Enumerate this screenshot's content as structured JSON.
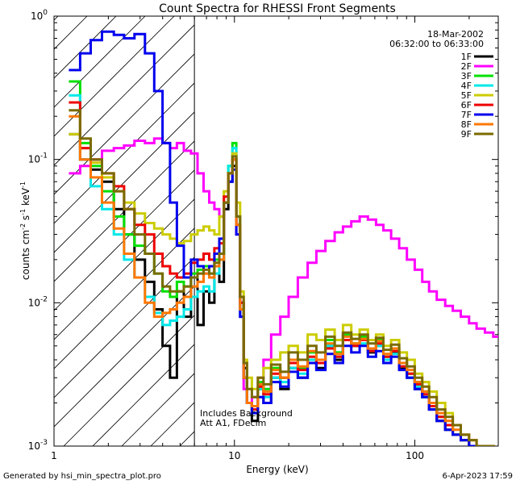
{
  "chart_data": {
    "type": "line",
    "title": "Count Spectra for RHESSI Front Segments",
    "xlabel": "Energy (keV)",
    "ylabel_base": "counts cm",
    "ylabel_exp1": "-2",
    "ylabel_mid1": " s",
    "ylabel_exp2": "-1",
    "ylabel_mid2": " keV",
    "ylabel_exp3": "-1",
    "xscale": "log",
    "yscale": "log",
    "xlim": [
      1,
      290
    ],
    "ylim": [
      0.001,
      1.0
    ],
    "x_tick_labels": [
      {
        "value": 1,
        "label": "1"
      },
      {
        "value": 10,
        "label": "10"
      },
      {
        "value": 100,
        "label": "100"
      }
    ],
    "y_tick_labels": [
      {
        "value": 1.0,
        "base": "10",
        "exp": "0"
      },
      {
        "value": 0.1,
        "base": "10",
        "exp": "-1"
      },
      {
        "value": 0.01,
        "base": "10",
        "exp": "-2"
      },
      {
        "value": 0.001,
        "base": "10",
        "exp": "-3"
      }
    ],
    "date": "18-Mar-2002",
    "time_range": "06:32:00 to 06:33:00",
    "annotation_line1": "Includes Background",
    "annotation_line2": "Att A1, FDecim",
    "shaded_region_xmax": 6.0,
    "legend_position": "top-right",
    "series": [
      {
        "name": "1F",
        "color": "#000000",
        "x": [
          1.3,
          1.5,
          1.7,
          2.0,
          2.3,
          2.6,
          3.0,
          3.4,
          3.8,
          4.2,
          4.6,
          5.0,
          5.5,
          6.0,
          6.5,
          7.0,
          7.5,
          8.0,
          8.5,
          9.0,
          9.5,
          10.0,
          10.5,
          11.0,
          11.5,
          12.0,
          13,
          14,
          15,
          17,
          19,
          21,
          24,
          27,
          30,
          34,
          38,
          42,
          47,
          52,
          58,
          64,
          70,
          78,
          86,
          95,
          105,
          115,
          125,
          140,
          155,
          170,
          190,
          210,
          230,
          260
        ],
        "y": [
          0.15,
          0.1,
          0.085,
          0.07,
          0.045,
          0.03,
          0.02,
          0.014,
          0.009,
          0.005,
          0.003,
          0.012,
          0.008,
          0.015,
          0.007,
          0.012,
          0.01,
          0.018,
          0.014,
          0.045,
          0.07,
          0.09,
          0.035,
          0.01,
          0.0035,
          0.002,
          0.0015,
          0.0025,
          0.002,
          0.003,
          0.0025,
          0.0035,
          0.003,
          0.004,
          0.0035,
          0.005,
          0.004,
          0.006,
          0.005,
          0.0055,
          0.0045,
          0.005,
          0.004,
          0.0045,
          0.0035,
          0.003,
          0.0025,
          0.0022,
          0.0018,
          0.0015,
          0.0013,
          0.0012,
          0.0011,
          0.001,
          0.001,
          0.001
        ]
      },
      {
        "name": "2F",
        "color": "#ff00ff",
        "x": [
          1.3,
          1.5,
          1.7,
          2.0,
          2.3,
          2.6,
          3.0,
          3.4,
          3.8,
          4.2,
          4.6,
          5.0,
          5.5,
          6.0,
          6.5,
          7.0,
          7.5,
          8.0,
          8.5,
          9.0,
          9.5,
          10.0,
          10.5,
          11.0,
          11.5,
          12.0,
          13,
          14,
          15,
          17,
          19,
          21,
          24,
          27,
          30,
          34,
          38,
          42,
          47,
          52,
          58,
          64,
          70,
          78,
          86,
          95,
          105,
          115,
          125,
          140,
          155,
          170,
          190,
          210,
          230,
          260,
          285
        ],
        "y": [
          0.08,
          0.09,
          0.1,
          0.115,
          0.12,
          0.125,
          0.135,
          0.13,
          0.14,
          0.13,
          0.12,
          0.13,
          0.115,
          0.11,
          0.08,
          0.06,
          0.05,
          0.045,
          0.04,
          0.05,
          0.08,
          0.1,
          0.03,
          0.008,
          0.0025,
          0.002,
          0.0022,
          0.003,
          0.004,
          0.006,
          0.008,
          0.011,
          0.015,
          0.019,
          0.023,
          0.027,
          0.031,
          0.034,
          0.037,
          0.04,
          0.038,
          0.035,
          0.032,
          0.028,
          0.024,
          0.02,
          0.017,
          0.014,
          0.012,
          0.0105,
          0.0095,
          0.0088,
          0.008,
          0.0072,
          0.0066,
          0.0062,
          0.0058
        ]
      },
      {
        "name": "3F",
        "color": "#00e000",
        "x": [
          1.3,
          1.5,
          1.7,
          2.0,
          2.3,
          2.6,
          3.0,
          3.4,
          3.8,
          4.2,
          4.6,
          5.0,
          5.5,
          6.0,
          6.5,
          7.0,
          7.5,
          8.0,
          8.5,
          9.0,
          9.5,
          10.0,
          10.5,
          11.0,
          11.5,
          12.0,
          13,
          14,
          15,
          17,
          19,
          21,
          24,
          27,
          30,
          34,
          38,
          42,
          47,
          52,
          58,
          64,
          70,
          78,
          86,
          95,
          105,
          115,
          125,
          140,
          155,
          170,
          190,
          210,
          230,
          260
        ],
        "y": [
          0.35,
          0.13,
          0.09,
          0.06,
          0.04,
          0.03,
          0.025,
          0.022,
          0.016,
          0.012,
          0.011,
          0.014,
          0.013,
          0.016,
          0.017,
          0.018,
          0.016,
          0.02,
          0.022,
          0.05,
          0.09,
          0.13,
          0.04,
          0.009,
          0.003,
          0.002,
          0.0018,
          0.0028,
          0.0025,
          0.0035,
          0.003,
          0.004,
          0.0035,
          0.0045,
          0.004,
          0.0055,
          0.0045,
          0.006,
          0.0052,
          0.0058,
          0.0048,
          0.0055,
          0.0042,
          0.0048,
          0.0038,
          0.0032,
          0.0028,
          0.0024,
          0.002,
          0.0016,
          0.0014,
          0.0012,
          0.0011,
          0.001,
          0.001,
          0.001
        ]
      },
      {
        "name": "4F",
        "color": "#00e8e8",
        "x": [
          1.3,
          1.5,
          1.7,
          2.0,
          2.3,
          2.6,
          3.0,
          3.4,
          3.8,
          4.2,
          4.6,
          5.0,
          5.5,
          6.0,
          6.5,
          7.0,
          7.5,
          8.0,
          8.5,
          9.0,
          9.5,
          10.0,
          10.5,
          11.0,
          11.5,
          12.0,
          13,
          14,
          15,
          17,
          19,
          21,
          24,
          27,
          30,
          34,
          38,
          42,
          47,
          52,
          58,
          64,
          70,
          78,
          86,
          95,
          105,
          115,
          125,
          140,
          155,
          170,
          190,
          210,
          230,
          260
        ],
        "y": [
          0.28,
          0.1,
          0.065,
          0.045,
          0.03,
          0.02,
          0.015,
          0.011,
          0.0085,
          0.007,
          0.0075,
          0.008,
          0.009,
          0.011,
          0.012,
          0.013,
          0.012,
          0.016,
          0.02,
          0.05,
          0.09,
          0.12,
          0.04,
          0.008,
          0.003,
          0.002,
          0.0018,
          0.0025,
          0.0022,
          0.003,
          0.0028,
          0.0035,
          0.0032,
          0.004,
          0.0038,
          0.005,
          0.0042,
          0.0055,
          0.005,
          0.0052,
          0.0046,
          0.005,
          0.004,
          0.0044,
          0.0036,
          0.003,
          0.0026,
          0.0022,
          0.0019,
          0.0016,
          0.0014,
          0.0012,
          0.0011,
          0.001,
          0.001,
          0.001
        ]
      },
      {
        "name": "5F",
        "color": "#cccc00",
        "x": [
          1.3,
          1.5,
          1.7,
          2.0,
          2.3,
          2.6,
          3.0,
          3.4,
          3.8,
          4.2,
          4.6,
          5.0,
          5.5,
          6.0,
          6.5,
          7.0,
          7.5,
          8.0,
          8.5,
          9.0,
          9.5,
          10.0,
          10.5,
          11.0,
          11.5,
          12.0,
          13,
          14,
          15,
          17,
          19,
          21,
          24,
          27,
          30,
          34,
          38,
          42,
          47,
          52,
          58,
          64,
          70,
          78,
          86,
          95,
          105,
          115,
          125,
          140,
          155,
          170,
          190,
          210,
          230,
          260
        ],
        "y": [
          0.15,
          0.12,
          0.095,
          0.075,
          0.06,
          0.05,
          0.042,
          0.036,
          0.033,
          0.03,
          0.028,
          0.026,
          0.027,
          0.03,
          0.032,
          0.034,
          0.032,
          0.03,
          0.04,
          0.06,
          0.08,
          0.11,
          0.05,
          0.012,
          0.004,
          0.003,
          0.0025,
          0.003,
          0.0035,
          0.004,
          0.0045,
          0.005,
          0.0045,
          0.006,
          0.0055,
          0.0065,
          0.0055,
          0.007,
          0.006,
          0.0065,
          0.0055,
          0.006,
          0.005,
          0.0055,
          0.0045,
          0.004,
          0.0032,
          0.0028,
          0.0024,
          0.002,
          0.0017,
          0.0014,
          0.0012,
          0.0011,
          0.001,
          0.001
        ]
      },
      {
        "name": "6F",
        "color": "#ee0000",
        "x": [
          1.3,
          1.5,
          1.7,
          2.0,
          2.3,
          2.6,
          3.0,
          3.4,
          3.8,
          4.2,
          4.6,
          5.0,
          5.5,
          6.0,
          6.5,
          7.0,
          7.5,
          8.0,
          8.5,
          9.0,
          9.5,
          10.0,
          10.5,
          11.0,
          11.5,
          12.0,
          13,
          14,
          15,
          17,
          19,
          21,
          24,
          27,
          30,
          34,
          38,
          42,
          47,
          52,
          58,
          64,
          70,
          78,
          86,
          95,
          105,
          115,
          125,
          140,
          155,
          170,
          190,
          210,
          230,
          260
        ],
        "y": [
          0.25,
          0.12,
          0.1,
          0.08,
          0.065,
          0.045,
          0.035,
          0.03,
          0.022,
          0.018,
          0.016,
          0.015,
          0.016,
          0.019,
          0.02,
          0.022,
          0.02,
          0.024,
          0.026,
          0.055,
          0.08,
          0.1,
          0.035,
          0.01,
          0.003,
          0.002,
          0.0018,
          0.0026,
          0.0023,
          0.0032,
          0.003,
          0.0038,
          0.0034,
          0.0042,
          0.0038,
          0.0048,
          0.0042,
          0.0055,
          0.005,
          0.0055,
          0.0046,
          0.0052,
          0.0042,
          0.0046,
          0.0036,
          0.0032,
          0.0027,
          0.0023,
          0.0019,
          0.0016,
          0.0014,
          0.0012,
          0.0011,
          0.001,
          0.001,
          0.001
        ]
      },
      {
        "name": "7F",
        "color": "#0000ee",
        "x": [
          1.3,
          1.5,
          1.7,
          2.0,
          2.3,
          2.6,
          3.0,
          3.4,
          3.8,
          4.2,
          4.6,
          5.0,
          5.5,
          6.0,
          6.5,
          7.0,
          7.5,
          8.0,
          8.5,
          9.0,
          9.5,
          10.0,
          10.5,
          11.0,
          11.5,
          12.0,
          13,
          14,
          15,
          17,
          19,
          21,
          24,
          27,
          30,
          34,
          38,
          42,
          47,
          52,
          58,
          64,
          70,
          78,
          86,
          95,
          105,
          115,
          125,
          140,
          155,
          170,
          190,
          210,
          230,
          260
        ],
        "y": [
          0.42,
          0.55,
          0.68,
          0.78,
          0.74,
          0.7,
          0.75,
          0.55,
          0.3,
          0.13,
          0.05,
          0.025,
          0.015,
          0.02,
          0.018,
          0.016,
          0.018,
          0.022,
          0.028,
          0.05,
          0.07,
          0.085,
          0.03,
          0.008,
          0.003,
          0.002,
          0.0017,
          0.0022,
          0.002,
          0.0028,
          0.0026,
          0.0033,
          0.003,
          0.0038,
          0.0034,
          0.0044,
          0.0038,
          0.005,
          0.0045,
          0.005,
          0.0042,
          0.0046,
          0.0038,
          0.0042,
          0.0034,
          0.003,
          0.0025,
          0.0022,
          0.0018,
          0.0015,
          0.0013,
          0.0012,
          0.0011,
          0.001,
          0.001,
          0.001
        ]
      },
      {
        "name": "8F",
        "color": "#ff7700",
        "x": [
          1.3,
          1.5,
          1.7,
          2.0,
          2.3,
          2.6,
          3.0,
          3.4,
          3.8,
          4.2,
          4.6,
          5.0,
          5.5,
          6.0,
          6.5,
          7.0,
          7.5,
          8.0,
          8.5,
          9.0,
          9.5,
          10.0,
          10.5,
          11.0,
          11.5,
          12.0,
          13,
          14,
          15,
          17,
          19,
          21,
          24,
          27,
          30,
          34,
          38,
          42,
          47,
          52,
          58,
          64,
          70,
          78,
          86,
          95,
          105,
          115,
          125,
          140,
          155,
          170,
          190,
          210,
          230,
          260
        ],
        "y": [
          0.2,
          0.1,
          0.075,
          0.05,
          0.033,
          0.022,
          0.015,
          0.01,
          0.008,
          0.0085,
          0.009,
          0.01,
          0.011,
          0.013,
          0.014,
          0.016,
          0.015,
          0.018,
          0.02,
          0.05,
          0.08,
          0.1,
          0.035,
          0.009,
          0.003,
          0.002,
          0.0019,
          0.0027,
          0.0024,
          0.0034,
          0.003,
          0.004,
          0.0036,
          0.0046,
          0.004,
          0.0052,
          0.0044,
          0.0058,
          0.0052,
          0.0056,
          0.0048,
          0.0054,
          0.0044,
          0.0048,
          0.0038,
          0.0034,
          0.0028,
          0.0024,
          0.002,
          0.0017,
          0.0015,
          0.0013,
          0.0012,
          0.0011,
          0.001,
          0.001
        ]
      },
      {
        "name": "9F",
        "color": "#7a6a00",
        "x": [
          1.3,
          1.5,
          1.7,
          2.0,
          2.3,
          2.6,
          3.0,
          3.4,
          3.8,
          4.2,
          4.6,
          5.0,
          5.5,
          6.0,
          6.5,
          7.0,
          7.5,
          8.0,
          8.5,
          9.0,
          9.5,
          10.0,
          10.5,
          11.0,
          11.5,
          12.0,
          13,
          14,
          15,
          17,
          19,
          21,
          24,
          27,
          30,
          34,
          38,
          42,
          47,
          52,
          58,
          64,
          70,
          78,
          86,
          95,
          105,
          115,
          125,
          140,
          155,
          170,
          190,
          210,
          230,
          260
        ],
        "y": [
          0.22,
          0.14,
          0.1,
          0.08,
          0.06,
          0.045,
          0.03,
          0.022,
          0.016,
          0.013,
          0.012,
          0.012,
          0.013,
          0.015,
          0.016,
          0.017,
          0.016,
          0.019,
          0.022,
          0.05,
          0.08,
          0.105,
          0.04,
          0.011,
          0.0038,
          0.0025,
          0.0022,
          0.003,
          0.0027,
          0.0037,
          0.0033,
          0.0045,
          0.004,
          0.005,
          0.0045,
          0.0058,
          0.005,
          0.0062,
          0.0056,
          0.006,
          0.0052,
          0.0057,
          0.0047,
          0.0051,
          0.0041,
          0.0036,
          0.003,
          0.0026,
          0.0022,
          0.0018,
          0.0016,
          0.0014,
          0.0012,
          0.0011,
          0.001,
          0.001
        ]
      }
    ]
  },
  "footer": {
    "generated_by": "Generated by hsi_min_spectra_plot.pro",
    "timestamp": "6-Apr-2023 17:59"
  }
}
